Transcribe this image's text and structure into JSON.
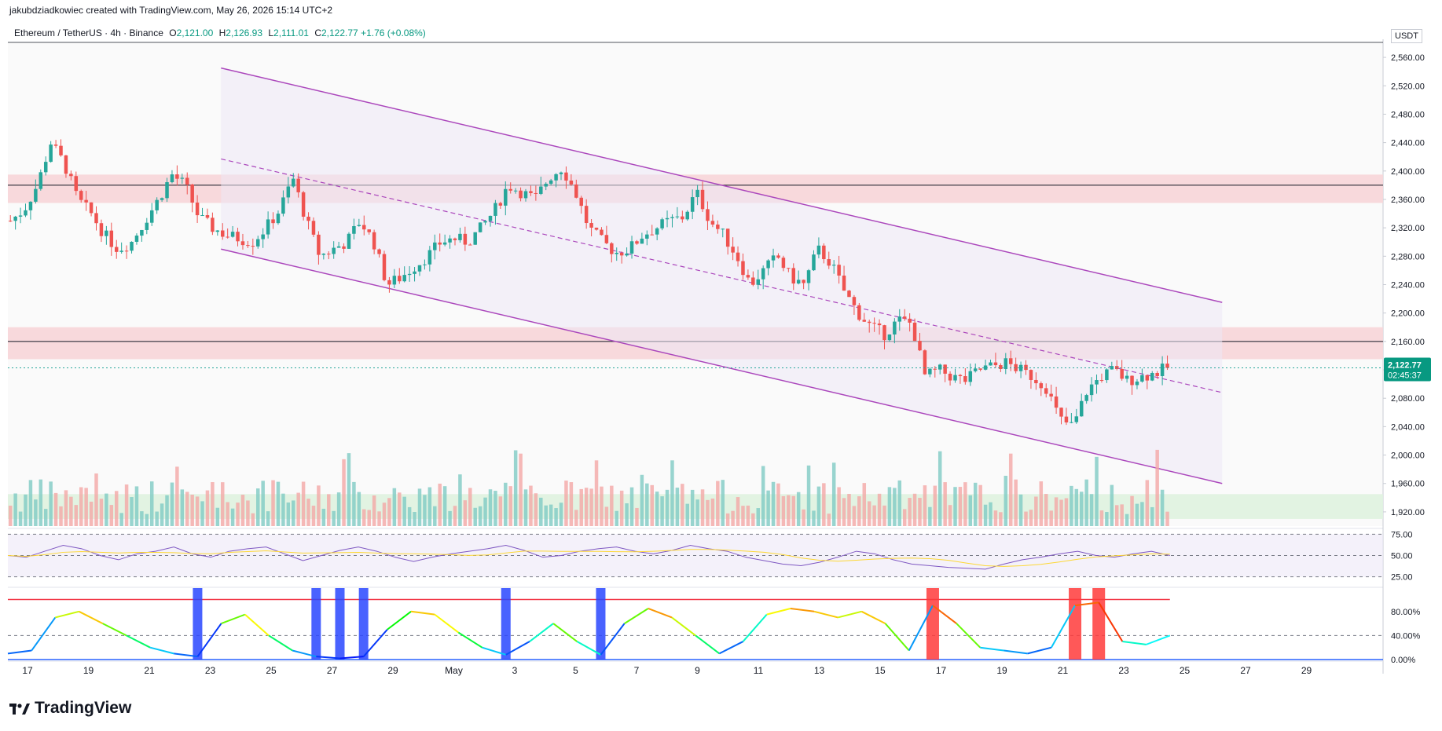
{
  "header": {
    "author_line": "jakubdziadkowiec created with TradingView.com, May 26, 2026 15:14 UTC+2",
    "symbol": "Ethereum / TetherUS · 4h · Binance",
    "o_label": "O",
    "o": "2,121.00",
    "h_label": "H",
    "h": "2,126.93",
    "l_label": "L",
    "l": "2,111.01",
    "c_label": "C",
    "c": "2,122.77",
    "change": "+1.76 (+0.08%)"
  },
  "currency": "USDT",
  "price_badge": {
    "price": "2,122.77",
    "countdown": "02:45:37"
  },
  "footer": {
    "logo_text": "TradingView"
  },
  "colors": {
    "up": "#26a69a",
    "down": "#ef5350",
    "channel": "#ab47bc",
    "resistance_zone": "#f8d7da",
    "support_zone": "#e0f2e0",
    "rsi": "#7e57c2",
    "rsi_ma": "#fdd835"
  },
  "chart_data": {
    "type": "candlestick",
    "timeframe": "4h",
    "ylim": [
      1900,
      2580
    ],
    "y_ticks": [
      "2,560.00",
      "2,520.00",
      "2,480.00",
      "2,440.00",
      "2,400.00",
      "2,360.00",
      "2,320.00",
      "2,280.00",
      "2,240.00",
      "2,200.00",
      "2,160.00",
      "2,120.00",
      "2,080.00",
      "2,040.00",
      "2,000.00",
      "1,960.00",
      "1,920.00"
    ],
    "x_ticks": [
      "17",
      "19",
      "21",
      "23",
      "25",
      "27",
      "29",
      "May",
      "3",
      "5",
      "7",
      "9",
      "11",
      "13",
      "15",
      "17",
      "19",
      "21",
      "23",
      "25",
      "27",
      "29"
    ],
    "key_prices": [
      {
        "label": "2,160.00",
        "price": 2160
      },
      {
        "label": "2,380.00",
        "price": 2380
      }
    ],
    "zones": [
      {
        "type": "resistance",
        "from": 2355,
        "to": 2395
      },
      {
        "type": "resistance",
        "from": 2135,
        "to": 2180
      },
      {
        "type": "support",
        "from": 1910,
        "to": 1945
      }
    ],
    "close_path": [
      2330,
      2345,
      2380,
      2440,
      2410,
      2360,
      2340,
      2310,
      2290,
      2300,
      2330,
      2360,
      2395,
      2380,
      2335,
      2320,
      2310,
      2305,
      2300,
      2320,
      2345,
      2390,
      2330,
      2280,
      2290,
      2300,
      2330,
      2300,
      2240,
      2250,
      2265,
      2280,
      2300,
      2305,
      2300,
      2320,
      2345,
      2380,
      2370,
      2360,
      2390,
      2405,
      2370,
      2320,
      2300,
      2285,
      2290,
      2310,
      2320,
      2330,
      2335,
      2370,
      2330,
      2310,
      2280,
      2240,
      2260,
      2280,
      2250,
      2240,
      2290,
      2270,
      2230,
      2200,
      2180,
      2170,
      2190,
      2185,
      2110,
      2120,
      2110,
      2105,
      2120,
      2125,
      2130,
      2120,
      2110,
      2095,
      2050,
      2040,
      2090,
      2110,
      2120,
      2105,
      2110,
      2115,
      2123
    ],
    "channel": {
      "upper": [
        {
          "t": 0.155,
          "p": 2545
        },
        {
          "t": 0.883,
          "p": 2215
        }
      ],
      "lower": [
        {
          "t": 0.155,
          "p": 2290
        },
        {
          "t": 0.883,
          "p": 1960
        }
      ],
      "mid": [
        {
          "t": 0.155,
          "p": 2417
        },
        {
          "t": 0.883,
          "p": 2088
        }
      ]
    },
    "rsi": {
      "levels": [
        "75.00",
        "50.00",
        "25.00"
      ],
      "values": [
        50,
        48,
        55,
        62,
        58,
        50,
        45,
        52,
        55,
        60,
        52,
        48,
        55,
        58,
        60,
        52,
        44,
        50,
        56,
        60,
        55,
        48,
        43,
        48,
        52,
        55,
        58,
        62,
        56,
        48,
        50,
        55,
        58,
        60,
        55,
        52,
        56,
        62,
        58,
        55,
        48,
        44,
        40,
        38,
        42,
        48,
        55,
        52,
        45,
        40,
        38,
        36,
        35,
        34,
        40,
        45,
        48,
        52,
        55,
        50,
        48,
        52,
        55,
        50
      ]
    },
    "stoch": {
      "levels": [
        "80.00%",
        "40.00%",
        "0.00%"
      ],
      "values": [
        10,
        15,
        70,
        80,
        60,
        40,
        20,
        10,
        5,
        60,
        75,
        40,
        15,
        5,
        2,
        5,
        50,
        80,
        75,
        45,
        20,
        8,
        30,
        60,
        30,
        8,
        60,
        85,
        70,
        40,
        10,
        30,
        75,
        85,
        80,
        70,
        80,
        60,
        15,
        90,
        60,
        20,
        15,
        10,
        20,
        90,
        95,
        30,
        25,
        40
      ]
    }
  }
}
